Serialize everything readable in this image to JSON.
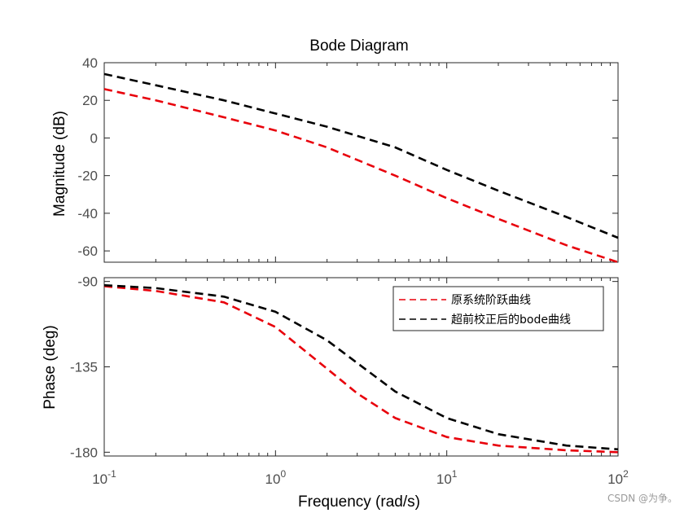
{
  "chart_data": {
    "type": "line",
    "title": "Bode Diagram",
    "xlabel": "Frequency  (rad/s)",
    "xscale": "log",
    "xlim": [
      0.1,
      100
    ],
    "xticks": [
      {
        "value": 0.1,
        "base": "10",
        "exp": "-1"
      },
      {
        "value": 1,
        "base": "10",
        "exp": "0"
      },
      {
        "value": 10,
        "base": "10",
        "exp": "1"
      },
      {
        "value": 100,
        "base": "10",
        "exp": "2"
      }
    ],
    "grid": false,
    "line_style": "dashed",
    "colors": {
      "original": "#e8000b",
      "corrected": "#000000",
      "axes": "#262626"
    },
    "magnitude": {
      "ylabel": "Magnitude (dB)",
      "ylim": [
        -66,
        40
      ],
      "yticks": [
        40,
        20,
        0,
        -20,
        -40,
        -60
      ],
      "series": [
        {
          "key": "original",
          "x": [
            0.1,
            0.2,
            0.5,
            1,
            2,
            5,
            10,
            20,
            50,
            100
          ],
          "values": [
            26,
            20,
            11,
            4,
            -5,
            -20,
            -32,
            -43,
            -57,
            -66
          ]
        },
        {
          "key": "corrected",
          "x": [
            0.1,
            0.2,
            0.5,
            1,
            2,
            5,
            10,
            20,
            50,
            100
          ],
          "values": [
            34,
            28,
            20,
            13,
            6,
            -5,
            -17,
            -28,
            -42,
            -53
          ]
        }
      ]
    },
    "phase": {
      "ylabel": "Phase (deg)",
      "ylim": [
        -182,
        -88
      ],
      "yticks": [
        -90,
        -135,
        -180
      ],
      "series": [
        {
          "key": "original",
          "x": [
            0.1,
            0.2,
            0.5,
            1,
            2,
            3,
            5,
            10,
            20,
            50,
            100
          ],
          "values": [
            -92.5,
            -95,
            -101,
            -114,
            -136,
            -149,
            -162,
            -172,
            -176.5,
            -179,
            -180
          ]
        },
        {
          "key": "corrected",
          "x": [
            0.1,
            0.2,
            0.5,
            1,
            2,
            3,
            5,
            10,
            20,
            50,
            100
          ],
          "values": [
            -92,
            -93.5,
            -98,
            -106,
            -121,
            -133,
            -148,
            -162,
            -170.5,
            -176.5,
            -178.5
          ]
        }
      ]
    },
    "legend": {
      "placement": "top-right of phase plot",
      "entries": [
        {
          "key": "original",
          "label": "原系统阶跃曲线"
        },
        {
          "key": "corrected",
          "label": "超前校正后的bode曲线"
        }
      ]
    }
  },
  "watermark": "CSDN @为争。"
}
